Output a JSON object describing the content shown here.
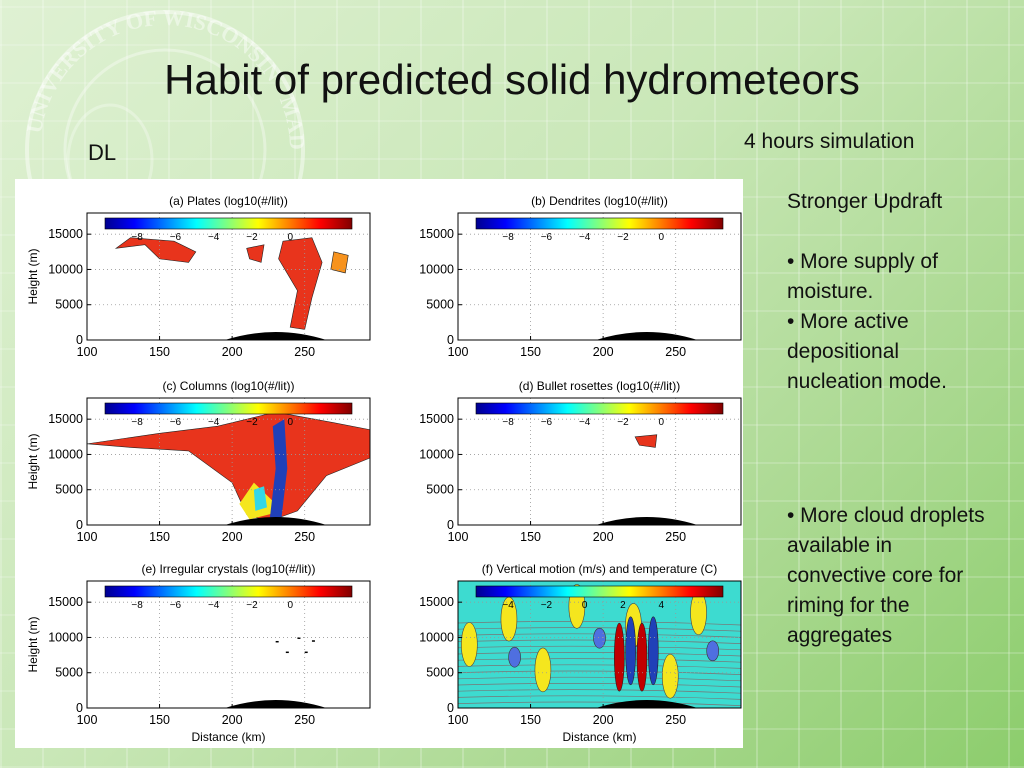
{
  "slide": {
    "title": "Habit of predicted solid hydrometeors",
    "label_left": "DL",
    "label_right": "4 hours simulation",
    "notes": {
      "heading": "Stronger Updraft",
      "bullet1": "• More supply of moisture.",
      "bullet2": "• More active depositional nucleation mode.",
      "bullet3": "• More cloud droplets available in convective core for riming for the aggregates"
    },
    "watermark": "UNIVERSITY OF WISCONSIN - MADISON"
  },
  "figure": {
    "xlabel": "Distance (km)",
    "ylabel": "Height (m)",
    "xticks": [
      "100",
      "150",
      "200",
      "250"
    ],
    "yticks": [
      "0",
      "5000",
      "10000",
      "15000"
    ],
    "colorbar_ticks": [
      "−8",
      "−6",
      "−4",
      "−2",
      "0"
    ],
    "colorbar_ticks_f": [
      "−4",
      "−2",
      "0",
      "2",
      "4"
    ],
    "panels": [
      {
        "title": "(a) Plates (log10(#/lit))"
      },
      {
        "title": "(b) Dendrites (log10(#/lit))"
      },
      {
        "title": "(c) Columns (log10(#/lit))"
      },
      {
        "title": "(d) Bullet rosettes (log10(#/lit))"
      },
      {
        "title": "(e) Irregular crystals (log10(#/lit))"
      },
      {
        "title": "(f) Vertical motion (m/s) and temperature (C)"
      }
    ],
    "colors": {
      "red": "#e8341c",
      "orange": "#f7931e",
      "yellow": "#f5e61e",
      "cyan": "#33d7e6",
      "blue": "#2040b8",
      "terrain": "#000000"
    }
  },
  "chart_data": [
    {
      "type": "heatmap",
      "title": "(a) Plates (log10(#/lit))",
      "xlabel": "Distance (km)",
      "ylabel": "Height (m)",
      "xlim": [
        100,
        295
      ],
      "ylim": [
        0,
        18000
      ],
      "colorbar_range": [
        -9,
        1
      ]
    },
    {
      "type": "heatmap",
      "title": "(b) Dendrites (log10(#/lit))",
      "xlabel": "Distance (km)",
      "ylabel": "Height (m)",
      "xlim": [
        100,
        295
      ],
      "ylim": [
        0,
        18000
      ],
      "colorbar_range": [
        -9,
        1
      ]
    },
    {
      "type": "heatmap",
      "title": "(c) Columns (log10(#/lit))",
      "xlabel": "Distance (km)",
      "ylabel": "Height (m)",
      "xlim": [
        100,
        295
      ],
      "ylim": [
        0,
        18000
      ],
      "colorbar_range": [
        -9,
        1
      ]
    },
    {
      "type": "heatmap",
      "title": "(d) Bullet rosettes (log10(#/lit))",
      "xlabel": "Distance (km)",
      "ylabel": "Height (m)",
      "xlim": [
        100,
        295
      ],
      "ylim": [
        0,
        18000
      ],
      "colorbar_range": [
        -9,
        1
      ]
    },
    {
      "type": "heatmap",
      "title": "(e) Irregular crystals (log10(#/lit))",
      "xlabel": "Distance (km)",
      "ylabel": "Height (m)",
      "xlim": [
        100,
        295
      ],
      "ylim": [
        0,
        18000
      ],
      "colorbar_range": [
        -9,
        1
      ]
    },
    {
      "type": "heatmap",
      "title": "(f) Vertical motion (m/s) and temperature (C)",
      "xlabel": "Distance (km)",
      "ylabel": "Height (m)",
      "xlim": [
        100,
        295
      ],
      "ylim": [
        0,
        18000
      ],
      "colorbar_range": [
        -5,
        5
      ]
    }
  ]
}
